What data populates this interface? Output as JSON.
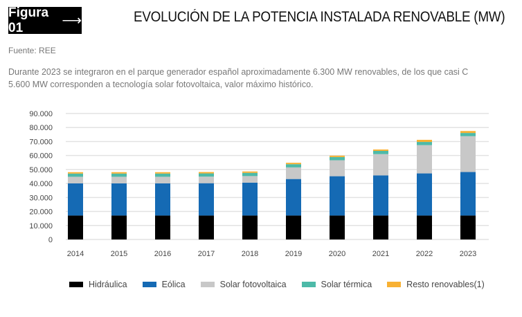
{
  "header": {
    "badge": "Figura 01",
    "badge_icon": "arrow-right-icon",
    "arrow": "⟶",
    "title": "EVOLUCIÓN DE LA POTENCIA INSTALADA RENOVABLE (MW)"
  },
  "source": "Fuente: REE",
  "description_line1": "Durante 2023 se integraron en el parque generador español aproximadamente 6.300 MW renovables, de los que casi C",
  "description_line2": "5.600 MW corresponden a tecnología solar fotovoltaica, valor máximo histórico.",
  "chart_data": {
    "type": "bar",
    "stacked": true,
    "categories": [
      "2014",
      "2015",
      "2016",
      "2017",
      "2018",
      "2019",
      "2020",
      "2021",
      "2022",
      "2023"
    ],
    "ylim": [
      0,
      90000
    ],
    "yticks": [
      0,
      10000,
      20000,
      30000,
      40000,
      50000,
      60000,
      70000,
      80000,
      90000
    ],
    "ytick_labels": [
      "0",
      "10.000",
      "20.000",
      "30.000",
      "40.000",
      "50.000",
      "60.000",
      "70.000",
      "80.000",
      "90.000"
    ],
    "grid": true,
    "legend": "bottom",
    "series": [
      {
        "name": "Hidráulica",
        "color": "#000000",
        "values": [
          17100,
          17100,
          17100,
          17100,
          17100,
          17100,
          17100,
          17100,
          17100,
          17100
        ]
      },
      {
        "name": "Eólica",
        "color": "#156AB4",
        "values": [
          23000,
          23000,
          23000,
          23100,
          23500,
          26100,
          28100,
          28700,
          30100,
          31100
        ]
      },
      {
        "name": "Solar fotovoltaica",
        "color": "#C8C8C8",
        "values": [
          4700,
          4700,
          4700,
          4700,
          4700,
          8300,
          11400,
          15200,
          20200,
          25600
        ]
      },
      {
        "name": "Solar térmica",
        "color": "#4DBAA8",
        "values": [
          2300,
          2300,
          2300,
          2300,
          2300,
          2300,
          2300,
          2300,
          2300,
          2300
        ]
      },
      {
        "name": "Resto renovables(1)",
        "color": "#F8B133",
        "values": [
          1000,
          1000,
          1000,
          1000,
          1000,
          1000,
          1000,
          1000,
          1500,
          1400
        ]
      }
    ]
  }
}
